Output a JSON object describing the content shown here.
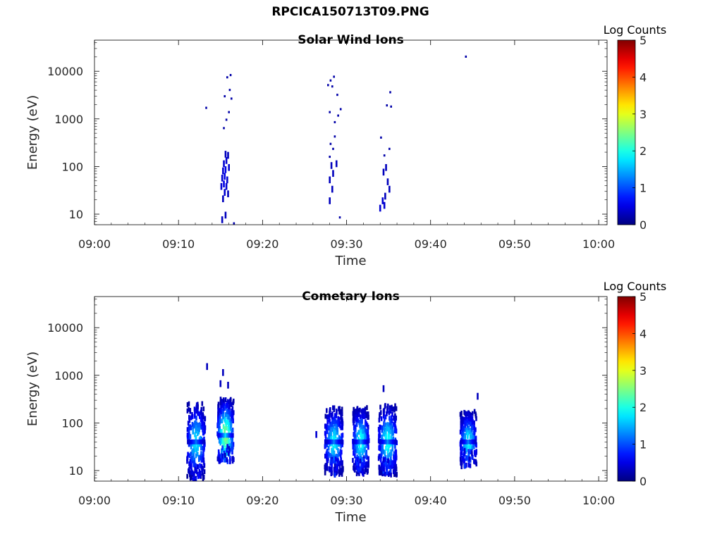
{
  "figure_title": "RPCICA150713T09.PNG",
  "chart_data": [
    {
      "type": "heatmap",
      "title": "Solar Wind Ions",
      "xlabel": "Time",
      "ylabel": "Energy (eV)",
      "x_ticks": [
        "09:00",
        "09:10",
        "09:20",
        "09:30",
        "09:40",
        "09:50",
        "10:00"
      ],
      "xlim_minutes_after_0900": [
        0,
        61
      ],
      "y_ticks": [
        "10",
        "100",
        "1000",
        "10000"
      ],
      "ylim_eV": [
        6,
        45000
      ],
      "y_scale": "log",
      "colorbar": {
        "label": "Log Counts",
        "ticks": [
          "0",
          "1",
          "2",
          "3",
          "4",
          "5"
        ],
        "range": [
          0,
          5
        ]
      },
      "cells": [
        {
          "t": 15.2,
          "e": 8,
          "v": 0.3
        },
        {
          "t": 15.6,
          "e": 10,
          "v": 0.3
        },
        {
          "t": 15.3,
          "e": 22,
          "v": 0.3
        },
        {
          "t": 15.5,
          "e": 30,
          "v": 0.4
        },
        {
          "t": 15.9,
          "e": 28,
          "v": 0.3
        },
        {
          "t": 15.1,
          "e": 40,
          "v": 0.4
        },
        {
          "t": 15.4,
          "e": 45,
          "v": 0.5
        },
        {
          "t": 15.7,
          "e": 40,
          "v": 0.4
        },
        {
          "t": 15.2,
          "e": 60,
          "v": 0.4
        },
        {
          "t": 15.5,
          "e": 65,
          "v": 0.5
        },
        {
          "t": 15.8,
          "e": 55,
          "v": 0.4
        },
        {
          "t": 15.3,
          "e": 85,
          "v": 0.4
        },
        {
          "t": 15.6,
          "e": 90,
          "v": 0.5
        },
        {
          "t": 16.0,
          "e": 100,
          "v": 0.4
        },
        {
          "t": 15.4,
          "e": 120,
          "v": 0.4
        },
        {
          "t": 15.7,
          "e": 140,
          "v": 0.4
        },
        {
          "t": 15.6,
          "e": 190,
          "v": 0.3
        },
        {
          "t": 15.9,
          "e": 180,
          "v": 0.3
        },
        {
          "t": 16.6,
          "e": 6,
          "v": 0.2
        },
        {
          "t": 15.4,
          "e": 600,
          "v": 0.2
        },
        {
          "t": 15.7,
          "e": 900,
          "v": 0.2
        },
        {
          "t": 16.0,
          "e": 1300,
          "v": 0.2
        },
        {
          "t": 13.3,
          "e": 1600,
          "v": 0.2
        },
        {
          "t": 16.3,
          "e": 2500,
          "v": 0.2
        },
        {
          "t": 15.5,
          "e": 2800,
          "v": 0.2
        },
        {
          "t": 16.1,
          "e": 3800,
          "v": 0.2
        },
        {
          "t": 15.8,
          "e": 7000,
          "v": 0.2
        },
        {
          "t": 16.2,
          "e": 7800,
          "v": 0.2
        },
        {
          "t": 28.0,
          "e": 20,
          "v": 0.3
        },
        {
          "t": 28.3,
          "e": 35,
          "v": 0.3
        },
        {
          "t": 28.0,
          "e": 55,
          "v": 0.3
        },
        {
          "t": 28.4,
          "e": 75,
          "v": 0.3
        },
        {
          "t": 28.2,
          "e": 110,
          "v": 0.3
        },
        {
          "t": 28.8,
          "e": 120,
          "v": 0.3
        },
        {
          "t": 28.0,
          "e": 150,
          "v": 0.2
        },
        {
          "t": 28.4,
          "e": 220,
          "v": 0.2
        },
        {
          "t": 28.1,
          "e": 280,
          "v": 0.2
        },
        {
          "t": 28.6,
          "e": 400,
          "v": 0.2
        },
        {
          "t": 29.2,
          "e": 8,
          "v": 0.2
        },
        {
          "t": 28.6,
          "e": 800,
          "v": 0.2
        },
        {
          "t": 28.0,
          "e": 1300,
          "v": 0.2
        },
        {
          "t": 29.0,
          "e": 1100,
          "v": 0.2
        },
        {
          "t": 29.3,
          "e": 1500,
          "v": 0.2
        },
        {
          "t": 28.9,
          "e": 3000,
          "v": 0.2
        },
        {
          "t": 27.8,
          "e": 4800,
          "v": 0.2
        },
        {
          "t": 28.3,
          "e": 4500,
          "v": 0.2
        },
        {
          "t": 28.1,
          "e": 6000,
          "v": 0.2
        },
        {
          "t": 28.5,
          "e": 7200,
          "v": 0.2
        },
        {
          "t": 34.0,
          "e": 14,
          "v": 0.4
        },
        {
          "t": 34.5,
          "e": 16,
          "v": 0.4
        },
        {
          "t": 34.3,
          "e": 20,
          "v": 0.4
        },
        {
          "t": 34.6,
          "e": 25,
          "v": 0.3
        },
        {
          "t": 35.1,
          "e": 35,
          "v": 0.3
        },
        {
          "t": 34.9,
          "e": 50,
          "v": 0.3
        },
        {
          "t": 34.4,
          "e": 80,
          "v": 0.3
        },
        {
          "t": 34.7,
          "e": 100,
          "v": 0.3
        },
        {
          "t": 34.5,
          "e": 160,
          "v": 0.2
        },
        {
          "t": 35.1,
          "e": 220,
          "v": 0.2
        },
        {
          "t": 34.1,
          "e": 380,
          "v": 0.2
        },
        {
          "t": 34.8,
          "e": 1800,
          "v": 0.2
        },
        {
          "t": 35.3,
          "e": 1700,
          "v": 0.2
        },
        {
          "t": 35.2,
          "e": 3400,
          "v": 0.2
        },
        {
          "t": 44.2,
          "e": 19000,
          "v": 0.2
        }
      ]
    },
    {
      "type": "heatmap",
      "title": "Cometary Ions",
      "xlabel": "Time",
      "ylabel": "Energy (eV)",
      "x_ticks": [
        "09:00",
        "09:10",
        "09:20",
        "09:30",
        "09:40",
        "09:50",
        "10:00"
      ],
      "xlim_minutes_after_0900": [
        0,
        61
      ],
      "y_ticks": [
        "10",
        "100",
        "1000",
        "10000"
      ],
      "ylim_eV": [
        6,
        45000
      ],
      "y_scale": "log",
      "colorbar": {
        "label": "Log Counts",
        "ticks": [
          "0",
          "1",
          "2",
          "3",
          "4",
          "5"
        ],
        "range": [
          0,
          5
        ]
      },
      "blobs": [
        {
          "t": 12.1,
          "tw": 0.9,
          "e": 40,
          "ew": 0.52,
          "peak": 1.7,
          "emin": 6,
          "emax": 450
        },
        {
          "t": 15.6,
          "tw": 0.8,
          "e": 55,
          "ew": 0.48,
          "peak": 2.5,
          "emin": 15,
          "emax": 900
        },
        {
          "t": 28.5,
          "tw": 0.9,
          "e": 40,
          "ew": 0.45,
          "peak": 1.8,
          "emin": 8,
          "emax": 550
        },
        {
          "t": 31.7,
          "tw": 0.8,
          "e": 40,
          "ew": 0.45,
          "peak": 1.9,
          "emin": 8,
          "emax": 450
        },
        {
          "t": 34.9,
          "tw": 0.9,
          "e": 40,
          "ew": 0.48,
          "peak": 1.9,
          "emin": 8,
          "emax": 500
        },
        {
          "t": 44.5,
          "tw": 0.8,
          "e": 40,
          "ew": 0.4,
          "peak": 1.8,
          "emin": 12,
          "emax": 220
        }
      ],
      "cells": [
        {
          "t": 13.4,
          "e": 1600,
          "v": 0.3
        },
        {
          "t": 15.3,
          "e": 1200,
          "v": 0.3
        },
        {
          "t": 15.0,
          "e": 700,
          "v": 0.3
        },
        {
          "t": 15.9,
          "e": 650,
          "v": 0.3
        },
        {
          "t": 45.6,
          "e": 380,
          "v": 0.3
        },
        {
          "t": 26.4,
          "e": 60,
          "v": 0.4
        },
        {
          "t": 34.4,
          "e": 550,
          "v": 0.3
        }
      ]
    }
  ]
}
